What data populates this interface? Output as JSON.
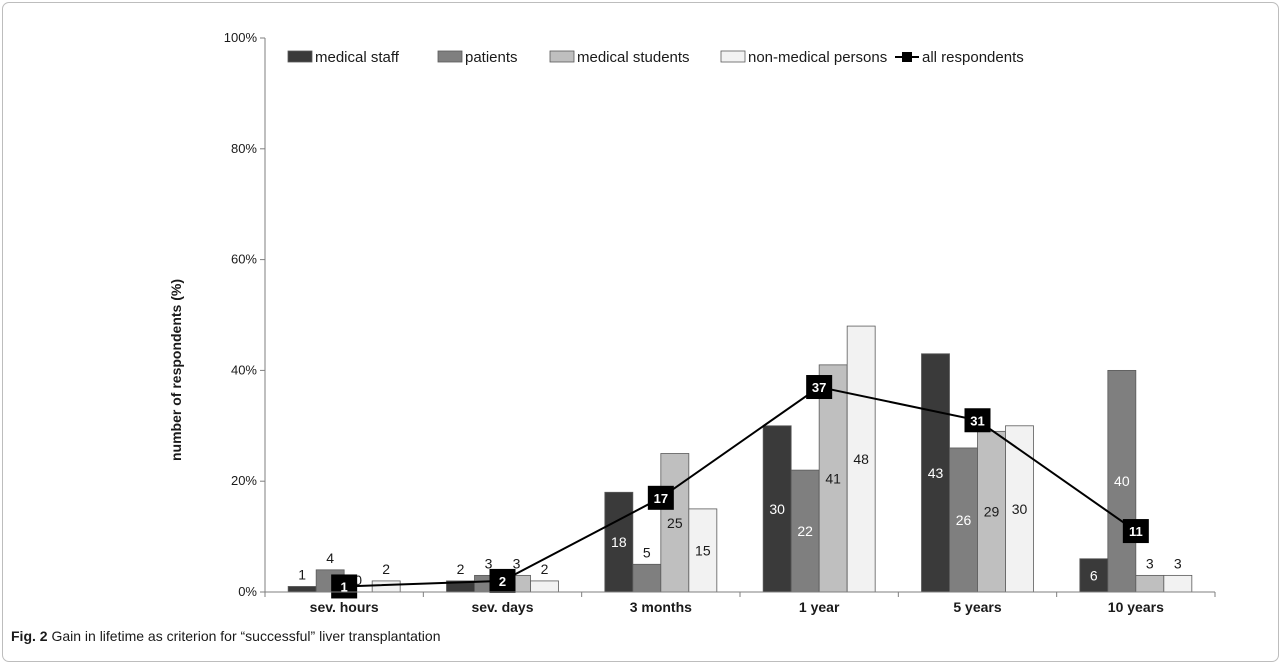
{
  "figure": {
    "caption_label": "Fig. 2",
    "caption_text": "Gain in lifetime as criterion for “successful” liver transplantation"
  },
  "chart_data": {
    "type": "bar",
    "ylabel": "number of respondents (%)",
    "ylim": [
      0,
      100
    ],
    "y_ticks": [
      "0%",
      "20%",
      "40%",
      "60%",
      "80%",
      "100%"
    ],
    "y_tick_values": [
      0,
      20,
      40,
      60,
      80,
      100
    ],
    "grid": false,
    "legend_position": "top",
    "categories": [
      "sev. hours",
      "sev. days",
      "3 months",
      "1 year",
      "5 years",
      "10 years"
    ],
    "series": [
      {
        "name": "medical staff",
        "color": "#3a3a3a",
        "values": [
          1,
          2,
          18,
          30,
          43,
          6
        ]
      },
      {
        "name": "patients",
        "color": "#7f7f7f",
        "values": [
          4,
          3,
          5,
          22,
          26,
          40
        ]
      },
      {
        "name": "medical students",
        "color": "#bfbfbf",
        "values": [
          0,
          3,
          25,
          41,
          29,
          3
        ]
      },
      {
        "name": "non-medical persons",
        "color": "#f2f2f2",
        "values": [
          2,
          2,
          15,
          48,
          30,
          3
        ]
      }
    ],
    "line_series": {
      "name": "all respondents",
      "color": "#000000",
      "values": [
        1,
        2,
        17,
        37,
        31,
        11
      ]
    }
  }
}
